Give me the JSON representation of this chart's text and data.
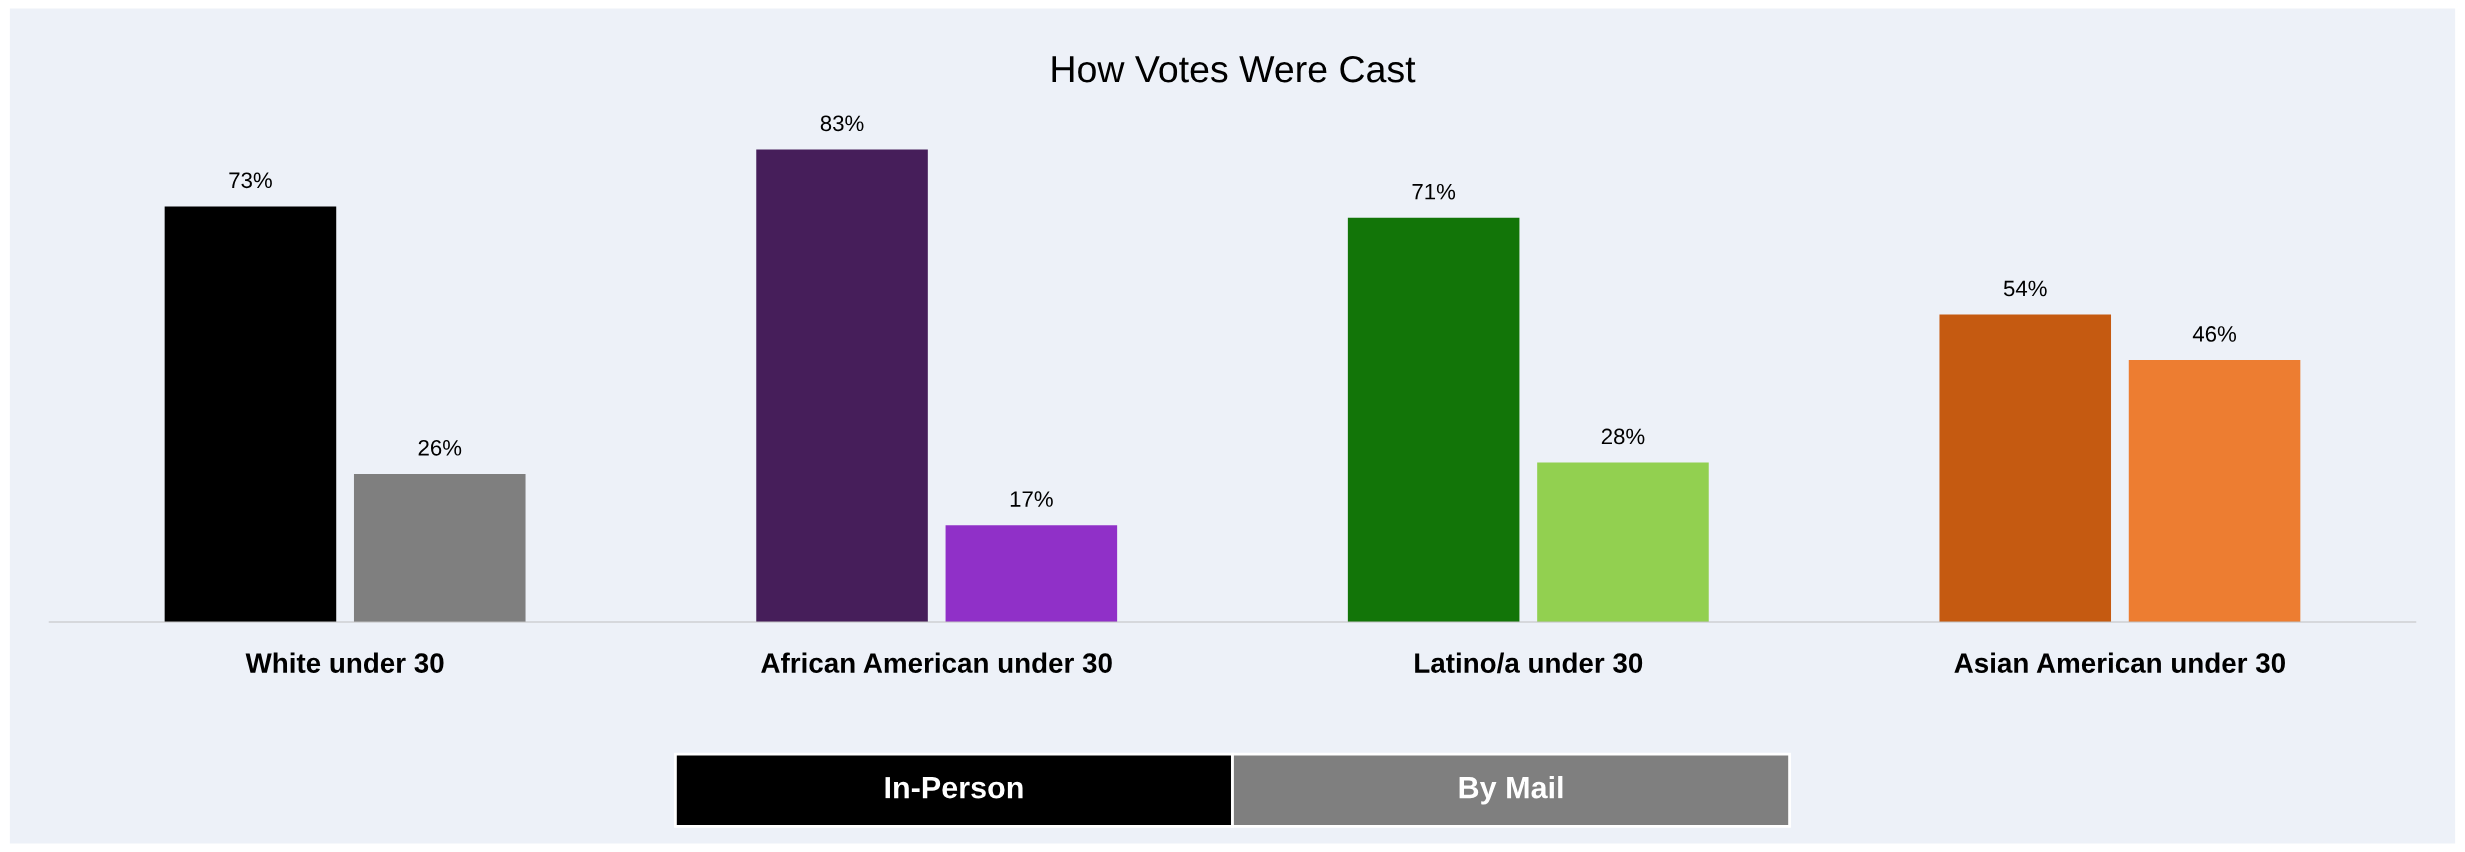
{
  "chart_data": {
    "type": "bar",
    "title": "How Votes Were Cast",
    "categories": [
      "White under 30",
      "African American under 30",
      "Latino/a under 30",
      "Asian American under 30"
    ],
    "series": [
      {
        "name": "In-Person",
        "color": "#000000",
        "colors": [
          "#000000",
          "#461e5a",
          "#127508",
          "#c55a11"
        ],
        "values": [
          73,
          83,
          71,
          54
        ],
        "value_labels": [
          "73%",
          "83%",
          "71%",
          "54%"
        ]
      },
      {
        "name": "By Mail",
        "color": "#7f7f7f",
        "colors": [
          "#7f7f7f",
          "#9030c8",
          "#92d050",
          "#ed7d31"
        ],
        "values": [
          26,
          17,
          28,
          46
        ],
        "value_labels": [
          "26%",
          "17%",
          "28%",
          "46%"
        ]
      }
    ],
    "legend": "bottom",
    "grid": false
  }
}
